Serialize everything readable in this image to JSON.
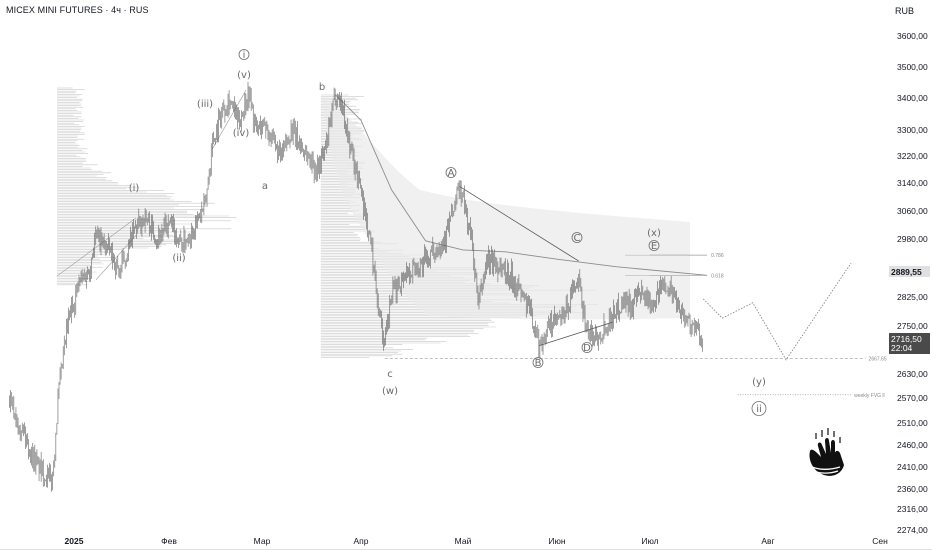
{
  "header": {
    "title": "MICEX MINI FUTURES · 4ч · RUS",
    "currency": "RUB"
  },
  "price_badges": {
    "upper": "2889,55",
    "last": "2716,50",
    "countdown": "22:04"
  },
  "colors": {
    "candle": "#5e5e5e",
    "profile": "#c9c9c9",
    "cloud": "#e9e9e9",
    "line": "#8a8a8a",
    "badge_upper_bg": "#e0e0e0",
    "badge_last_bg": "#4a4a4a"
  },
  "logo": {
    "name": "shaka-hand-logo"
  },
  "chart_data": {
    "type": "candlestick",
    "title": "MICEX MINI FUTURES · 4ч · RUS",
    "timeframe": "4ч",
    "yaxis": {
      "ticks": [
        3600,
        3500,
        3400,
        3300,
        3220,
        3140,
        3060,
        2980,
        2825,
        2750,
        2630,
        2570,
        2510,
        2460,
        2410,
        2360,
        2316,
        2274
      ],
      "tick_labels": [
        "3600,00",
        "3500,00",
        "3400,00",
        "3300,00",
        "3220,00",
        "3140,00",
        "3060,00",
        "2980,00",
        "2825,00",
        "2750,00",
        "2630,00",
        "2570,00",
        "2510,00",
        "2460,00",
        "2410,00",
        "2360,00",
        "2316,00",
        "2274,00"
      ],
      "scale": "log",
      "range": [
        2274,
        3620
      ]
    },
    "xaxis": {
      "labels": [
        "2025",
        "Фев",
        "Мар",
        "Апр",
        "Май",
        "Июн",
        "Июл",
        "Авг",
        "Сен"
      ],
      "dates": [
        "2025-01-01",
        "2025-02-01",
        "2025-03-01",
        "2025-04-01",
        "2025-05-01",
        "2025-06-01",
        "2025-07-01",
        "2025-08-01",
        "2025-09-01"
      ],
      "start": "2024-12-11",
      "end": "2025-09-07"
    },
    "price_path": [
      [
        "2024-12-11",
        2560
      ],
      [
        "2024-12-15",
        2500
      ],
      [
        "2024-12-18",
        2440
      ],
      [
        "2024-12-22",
        2395
      ],
      [
        "2024-12-25",
        2380
      ],
      [
        "2024-12-27",
        2585
      ],
      [
        "2024-12-30",
        2760
      ],
      [
        "2025-01-03",
        2870
      ],
      [
        "2025-01-06",
        2895
      ],
      [
        "2025-01-08",
        2990
      ],
      [
        "2025-01-12",
        2955
      ],
      [
        "2025-01-16",
        2890
      ],
      [
        "2025-01-20",
        2990
      ],
      [
        "2025-01-24",
        3045
      ],
      [
        "2025-01-28",
        2985
      ],
      [
        "2025-02-01",
        3020
      ],
      [
        "2025-02-05",
        2965
      ],
      [
        "2025-02-09",
        3020
      ],
      [
        "2025-02-12",
        3080
      ],
      [
        "2025-02-14",
        3260
      ],
      [
        "2025-02-17",
        3360
      ],
      [
        "2025-02-19",
        3400
      ],
      [
        "2025-02-22",
        3320
      ],
      [
        "2025-02-25",
        3425
      ],
      [
        "2025-02-27",
        3300
      ],
      [
        "2025-03-02",
        3320
      ],
      [
        "2025-03-04",
        3270
      ],
      [
        "2025-03-07",
        3210
      ],
      [
        "2025-03-10",
        3300
      ],
      [
        "2025-03-14",
        3240
      ],
      [
        "2025-03-18",
        3180
      ],
      [
        "2025-03-21",
        3240
      ],
      [
        "2025-03-24",
        3420
      ],
      [
        "2025-03-26",
        3380
      ],
      [
        "2025-03-29",
        3230
      ],
      [
        "2025-04-01",
        3120
      ],
      [
        "2025-04-04",
        2960
      ],
      [
        "2025-04-06",
        2810
      ],
      [
        "2025-04-08",
        2695
      ],
      [
        "2025-04-10",
        2830
      ],
      [
        "2025-04-14",
        2890
      ],
      [
        "2025-04-18",
        2905
      ],
      [
        "2025-04-22",
        2940
      ],
      [
        "2025-04-26",
        2990
      ],
      [
        "2025-04-30",
        3130
      ],
      [
        "2025-05-04",
        2975
      ],
      [
        "2025-05-06",
        2800
      ],
      [
        "2025-05-09",
        2930
      ],
      [
        "2025-05-13",
        2905
      ],
      [
        "2025-05-17",
        2880
      ],
      [
        "2025-05-20",
        2840
      ],
      [
        "2025-05-24",
        2770
      ],
      [
        "2025-05-26",
        2700
      ],
      [
        "2025-05-30",
        2755
      ],
      [
        "2025-06-03",
        2770
      ],
      [
        "2025-06-06",
        2840
      ],
      [
        "2025-06-08",
        2860
      ],
      [
        "2025-06-11",
        2730
      ],
      [
        "2025-06-14",
        2725
      ],
      [
        "2025-06-16",
        2745
      ],
      [
        "2025-06-19",
        2780
      ],
      [
        "2025-06-23",
        2820
      ],
      [
        "2025-06-25",
        2800
      ],
      [
        "2025-06-28",
        2830
      ],
      [
        "2025-07-02",
        2815
      ],
      [
        "2025-07-05",
        2865
      ],
      [
        "2025-07-07",
        2835
      ],
      [
        "2025-07-10",
        2775
      ],
      [
        "2025-07-13",
        2740
      ],
      [
        "2025-07-15",
        2716
      ]
    ],
    "projection": [
      [
        "2025-07-15",
        2820
      ],
      [
        "2025-07-20",
        2770
      ],
      [
        "2025-07-28",
        2810
      ],
      [
        "2025-08-06",
        2665
      ],
      [
        "2025-08-24",
        2915
      ]
    ],
    "levels": [
      {
        "label": "2667.65",
        "value": 2667.65,
        "style": "dashed",
        "from": "2025-04-08",
        "to": "2025-08-28"
      },
      {
        "label": "weekly FVG ll",
        "value": 2578,
        "style": "dotted",
        "from": "2025-07-24",
        "to": "2025-08-24"
      },
      {
        "label": "0.786",
        "value": 2936,
        "from": "2025-07-01",
        "to": "2025-07-16"
      },
      {
        "label": "0.618",
        "value": 2882,
        "from": "2025-07-01",
        "to": "2025-07-16"
      }
    ],
    "wave_labels": [
      "i",
      "(v)",
      "(iii)",
      "(iv)",
      "a",
      "(i)",
      "(ii)",
      "b",
      "c",
      "(w)",
      "A",
      "B",
      "C",
      "D",
      "E",
      "(x)",
      "(y)",
      "ii"
    ],
    "triangle": {
      "upper": [
        [
          "2025-04-30",
          3130
        ],
        [
          "2025-06-08",
          2920
        ]
      ],
      "lower": [
        [
          "2025-05-26",
          2700
        ],
        [
          "2025-06-19",
          2760
        ]
      ]
    },
    "ma_curve": [
      [
        "2025-03-24",
        3410
      ],
      [
        "2025-04-01",
        3330
      ],
      [
        "2025-04-10",
        3120
      ],
      [
        "2025-04-20",
        2975
      ],
      [
        "2025-05-01",
        2950
      ],
      [
        "2025-05-15",
        2945
      ],
      [
        "2025-06-01",
        2925
      ],
      [
        "2025-06-20",
        2905
      ],
      [
        "2025-07-16",
        2882
      ]
    ]
  }
}
